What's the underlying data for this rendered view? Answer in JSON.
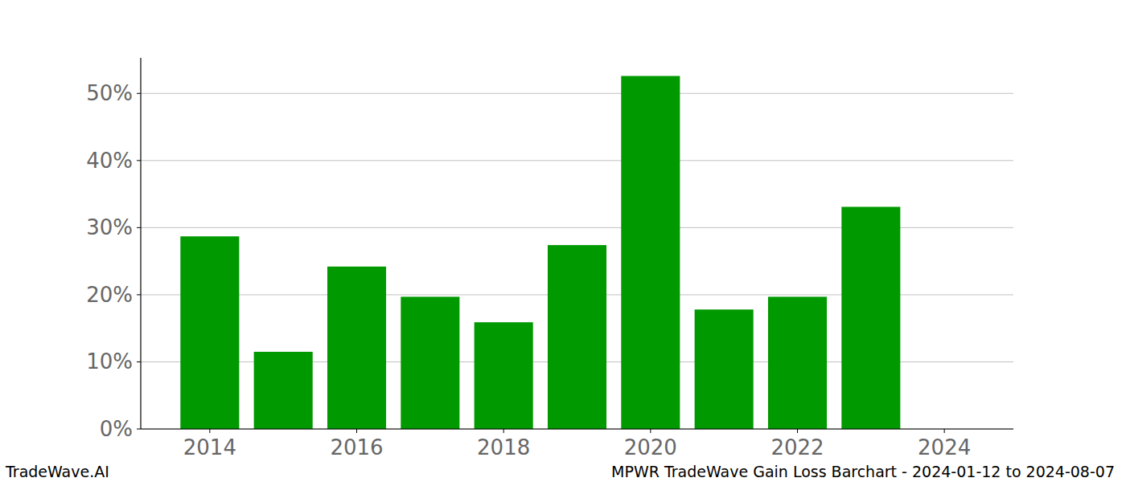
{
  "chart_data": {
    "type": "bar",
    "x": [
      2014,
      2015,
      2016,
      2017,
      2018,
      2019,
      2020,
      2021,
      2022,
      2023,
      2024
    ],
    "values": [
      28.7,
      11.5,
      24.2,
      19.7,
      15.9,
      27.4,
      52.6,
      17.8,
      19.7,
      33.1,
      0
    ],
    "color": "#009900",
    "xlim": [
      2013.06,
      2024.94
    ],
    "xticks": [
      2014,
      2016,
      2018,
      2020,
      2022,
      2024
    ],
    "ylim": [
      0,
      55.3
    ],
    "yticks": [
      {
        "value": 0,
        "label": "0%"
      },
      {
        "value": 10,
        "label": "10%"
      },
      {
        "value": 20,
        "label": "20%"
      },
      {
        "value": 30,
        "label": "30%"
      },
      {
        "value": 40,
        "label": "40%"
      },
      {
        "value": 50,
        "label": "50%"
      }
    ],
    "grid": true,
    "annotations": [
      "TradeWave.AI",
      "MPWR TradeWave Gain Loss Barchart - 2024-01-12 to 2024-08-07"
    ]
  }
}
